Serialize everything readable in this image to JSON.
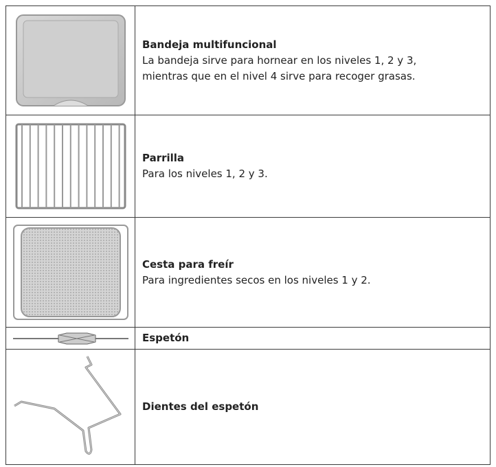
{
  "table": {
    "rows": [
      {
        "title": "Bandeja multifuncional",
        "description": [
          "La bandeja sirve para hornear en los niveles 1, 2 y 3,",
          "mientras que en el nivel 4 sirve para recoger grasas."
        ]
      },
      {
        "title": "Parrilla",
        "description": [
          "Para los niveles 1, 2 y 3."
        ]
      },
      {
        "title": "Cesta para freír",
        "description": [
          "Para ingredientes secos en los niveles 1 y 2."
        ]
      },
      {
        "title": "Espetón",
        "description": []
      },
      {
        "title": "Dientes del espetón",
        "description": []
      }
    ]
  }
}
